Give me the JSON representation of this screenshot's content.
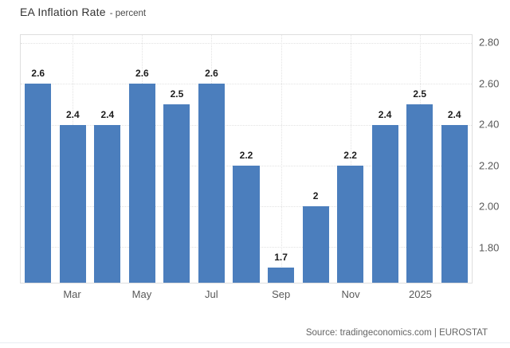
{
  "header": {
    "title": "EA Inflation Rate",
    "subtitle": "- percent"
  },
  "footer": {
    "source_text": "Source: tradingeconomics.com | EUROSTAT"
  },
  "colors": {
    "bar": "#4b7ebd",
    "gridline": "#e2e2e2",
    "axis_text": "#595959",
    "title_text": "#333333",
    "source_text": "#646464"
  },
  "chart_data": {
    "type": "bar",
    "title": "EA Inflation Rate",
    "ylabel_unit": "percent",
    "values": [
      2.6,
      2.4,
      2.4,
      2.6,
      2.5,
      2.6,
      2.2,
      1.7,
      2,
      2.2,
      2.4,
      2.5,
      2.4
    ],
    "data_labels": [
      "2.6",
      "2.4",
      "2.4",
      "2.6",
      "2.5",
      "2.6",
      "2.2",
      "1.7",
      "2",
      "2.2",
      "2.4",
      "2.5",
      "2.4"
    ],
    "x_ticks": [
      {
        "label": "Mar",
        "bar_index": 1
      },
      {
        "label": "May",
        "bar_index": 3
      },
      {
        "label": "Jul",
        "bar_index": 5
      },
      {
        "label": "Sep",
        "bar_index": 7
      },
      {
        "label": "Nov",
        "bar_index": 9
      },
      {
        "label": "2025",
        "bar_index": 11
      }
    ],
    "y_ticks": [
      {
        "label": "2.80",
        "value": 2.8
      },
      {
        "label": "2.60",
        "value": 2.6
      },
      {
        "label": "2.40",
        "value": 2.4
      },
      {
        "label": "2.20",
        "value": 2.2
      },
      {
        "label": "2.00",
        "value": 2.0
      },
      {
        "label": "1.80",
        "value": 1.8
      }
    ],
    "ylim": [
      1.626,
      2.839
    ],
    "grid": true,
    "legend": false,
    "y_axis_position": "right",
    "source": "Source: tradingeconomics.com | EUROSTAT"
  }
}
